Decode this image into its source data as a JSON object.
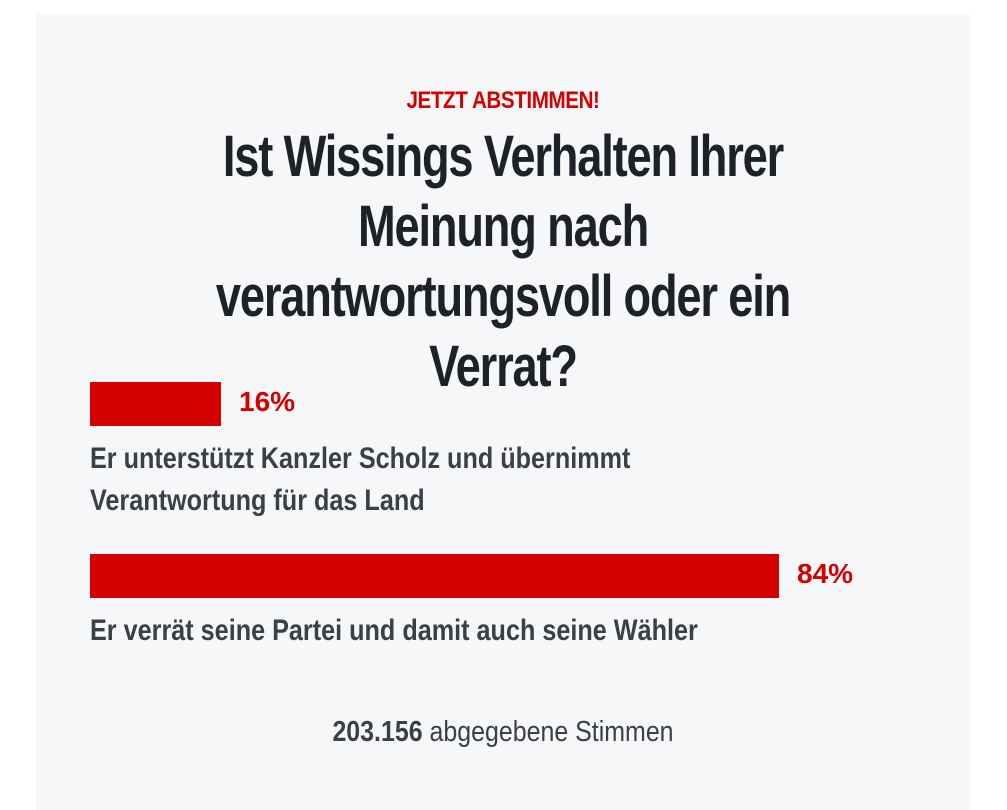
{
  "poll": {
    "kicker": "JETZT ABSTIMMEN!",
    "question": "Ist Wissings Verhalten Ihrer Meinung nach verantwortungsvoll oder ein Verrat?",
    "options": [
      {
        "percent_label": "16%",
        "percent": 16,
        "answer": "Er unterstützt Kanzler Scholz und übernimmt Verantwortung für das Land"
      },
      {
        "percent_label": "84%",
        "percent": 84,
        "answer": "Er verrät seine Partei und damit auch seine Wähler"
      }
    ],
    "vote_count": "203.156",
    "vote_suffix": "abgegebene Stimmen"
  },
  "colors": {
    "accent": "#d50000",
    "heading": "#1e2228",
    "text": "#3b3f46",
    "card_background": "#f6f7f9"
  }
}
